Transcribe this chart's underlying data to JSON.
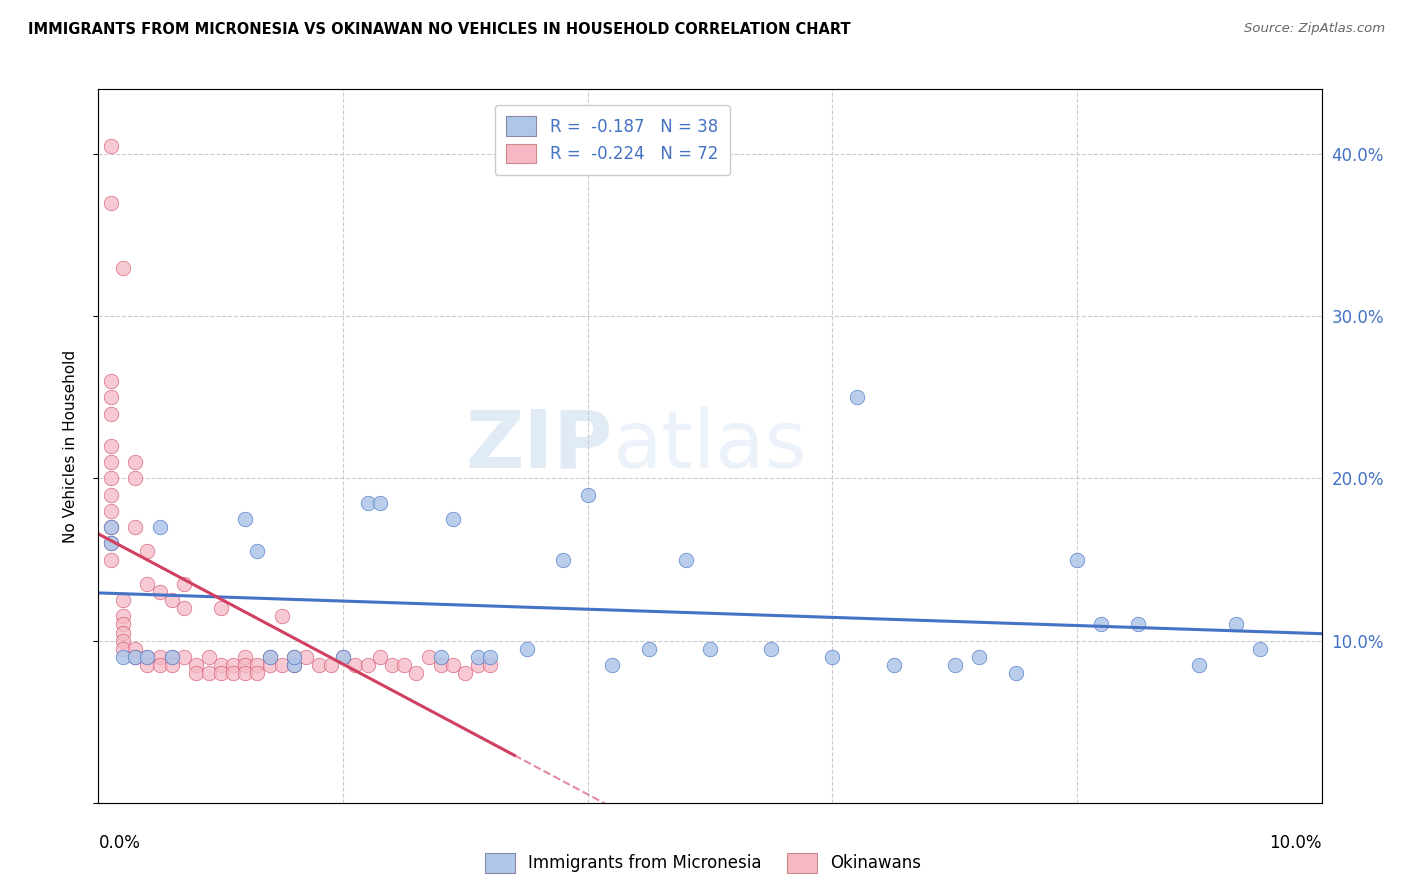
{
  "title": "IMMIGRANTS FROM MICRONESIA VS OKINAWAN NO VEHICLES IN HOUSEHOLD CORRELATION CHART",
  "source": "Source: ZipAtlas.com",
  "ylabel": "No Vehicles in Household",
  "legend_label1": "Immigrants from Micronesia",
  "legend_label2": "Okinawans",
  "color_blue": "#aec6e8",
  "color_pink": "#f5b8c4",
  "line_blue": "#4472c4",
  "line_pink": "#d04060",
  "watermark_zip": "ZIP",
  "watermark_atlas": "atlas",
  "blue_x": [
    0.001,
    0.001,
    0.002,
    0.003,
    0.004,
    0.005,
    0.006,
    0.012,
    0.013,
    0.014,
    0.016,
    0.016,
    0.02,
    0.022,
    0.023,
    0.028,
    0.029,
    0.031,
    0.032,
    0.035,
    0.038,
    0.04,
    0.042,
    0.045,
    0.048,
    0.05,
    0.055,
    0.06,
    0.062,
    0.065,
    0.07,
    0.072,
    0.075,
    0.08,
    0.082,
    0.085,
    0.09,
    0.093,
    0.095
  ],
  "blue_y": [
    0.16,
    0.17,
    0.09,
    0.09,
    0.09,
    0.17,
    0.09,
    0.175,
    0.155,
    0.09,
    0.085,
    0.09,
    0.09,
    0.185,
    0.185,
    0.09,
    0.175,
    0.09,
    0.09,
    0.095,
    0.15,
    0.19,
    0.085,
    0.095,
    0.15,
    0.095,
    0.095,
    0.09,
    0.25,
    0.085,
    0.085,
    0.09,
    0.08,
    0.15,
    0.11,
    0.11,
    0.085,
    0.11,
    0.095
  ],
  "pink_x": [
    0.001,
    0.001,
    0.001,
    0.001,
    0.001,
    0.001,
    0.001,
    0.001,
    0.001,
    0.001,
    0.001,
    0.001,
    0.001,
    0.002,
    0.002,
    0.002,
    0.002,
    0.002,
    0.002,
    0.002,
    0.003,
    0.003,
    0.003,
    0.003,
    0.003,
    0.004,
    0.004,
    0.004,
    0.004,
    0.005,
    0.005,
    0.005,
    0.006,
    0.006,
    0.006,
    0.007,
    0.007,
    0.007,
    0.008,
    0.008,
    0.009,
    0.009,
    0.01,
    0.01,
    0.01,
    0.011,
    0.011,
    0.012,
    0.012,
    0.012,
    0.013,
    0.013,
    0.014,
    0.014,
    0.015,
    0.015,
    0.016,
    0.016,
    0.017,
    0.018,
    0.019,
    0.02,
    0.021,
    0.022,
    0.023,
    0.024,
    0.025,
    0.026,
    0.027,
    0.028,
    0.029,
    0.03,
    0.031,
    0.032
  ],
  "pink_y": [
    0.405,
    0.37,
    0.26,
    0.25,
    0.24,
    0.22,
    0.21,
    0.2,
    0.19,
    0.18,
    0.17,
    0.16,
    0.15,
    0.33,
    0.125,
    0.115,
    0.11,
    0.105,
    0.1,
    0.095,
    0.21,
    0.2,
    0.17,
    0.095,
    0.09,
    0.155,
    0.135,
    0.09,
    0.085,
    0.13,
    0.09,
    0.085,
    0.125,
    0.09,
    0.085,
    0.135,
    0.12,
    0.09,
    0.085,
    0.08,
    0.09,
    0.08,
    0.12,
    0.085,
    0.08,
    0.085,
    0.08,
    0.09,
    0.085,
    0.08,
    0.085,
    0.08,
    0.09,
    0.085,
    0.115,
    0.085,
    0.09,
    0.085,
    0.09,
    0.085,
    0.085,
    0.09,
    0.085,
    0.085,
    0.09,
    0.085,
    0.085,
    0.08,
    0.09,
    0.085,
    0.085,
    0.08,
    0.085,
    0.085
  ],
  "xlim": [
    0.0,
    0.1
  ],
  "ylim": [
    0.0,
    0.44
  ],
  "blue_reg_xstart": 0.0,
  "blue_reg_xend": 0.1,
  "pink_reg_xstart": 0.0,
  "pink_reg_xend": 0.034
}
